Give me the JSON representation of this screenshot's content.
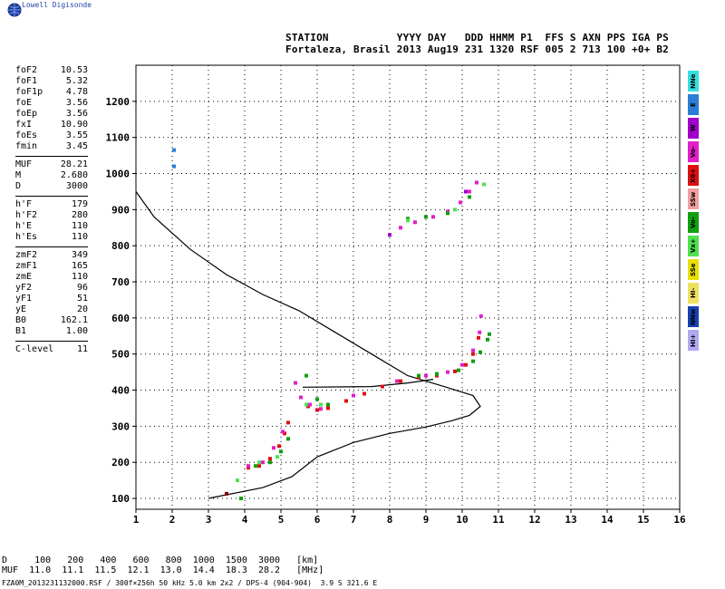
{
  "brand": "Lowell Digisonde",
  "header": {
    "line1": "STATION           YYYY DAY   DDD HHMM P1  FFS S AXN PPS IGA PS",
    "line2": "Fortaleza, Brasil 2013 Aug19 231 1320 RSF 005 2 713 100 +0+ B2"
  },
  "params": [
    {
      "label": "foF2",
      "value": "10.53"
    },
    {
      "label": "foF1",
      "value": "5.32"
    },
    {
      "label": "foF1p",
      "value": "4.78"
    },
    {
      "label": "foE",
      "value": "3.56"
    },
    {
      "label": "foEp",
      "value": "3.56"
    },
    {
      "label": "fxI",
      "value": "10.90"
    },
    {
      "label": "foEs",
      "value": "3.55"
    },
    {
      "label": "fmin",
      "value": "3.45"
    },
    {
      "label": "MUF",
      "value": "28.21",
      "sep": true
    },
    {
      "label": "M",
      "value": "2.680"
    },
    {
      "label": "D",
      "value": "3000"
    },
    {
      "label": "h'F",
      "value": "179",
      "sep": true
    },
    {
      "label": "h'F2",
      "value": "280"
    },
    {
      "label": "h'E",
      "value": "110"
    },
    {
      "label": "h'Es",
      "value": "110"
    },
    {
      "label": "zmF2",
      "value": "349",
      "sep": true
    },
    {
      "label": "zmF1",
      "value": "165"
    },
    {
      "label": "zmE",
      "value": "110"
    },
    {
      "label": "yF2",
      "value": "96"
    },
    {
      "label": "yF1",
      "value": "51"
    },
    {
      "label": "yE",
      "value": "20"
    },
    {
      "label": "B0",
      "value": "162.1"
    },
    {
      "label": "B1",
      "value": "1.00"
    },
    {
      "label": "C-level",
      "value": "11",
      "sep": true
    }
  ],
  "legend": [
    {
      "label": "NNe",
      "color": "#33e0e0"
    },
    {
      "label": "E",
      "color": "#2a7fd4"
    },
    {
      "label": "W",
      "color": "#a000c8"
    },
    {
      "label": "Vo-",
      "color": "#e020c8"
    },
    {
      "label": "X0+",
      "color": "#e01010"
    },
    {
      "label": "SSw",
      "color": "#f0a0a0"
    },
    {
      "label": "Vo-",
      "color": "#10a010"
    },
    {
      "label": "Vx+",
      "color": "#50e050"
    },
    {
      "label": "SSe",
      "color": "#e8e000"
    },
    {
      "label": "HI-",
      "color": "#f0e060"
    },
    {
      "label": "NNw",
      "color": "#1840b0"
    },
    {
      "label": "HI+",
      "color": "#b0a8f0"
    }
  ],
  "muf_table": {
    "d_row": "D     100   200   400   600   800  1000  1500  3000   [km]",
    "muf_row": "MUF  11.0  11.1  11.5  12.1  13.0  14.4  18.3  28.2   [MHz]"
  },
  "footer": "FZA0M_2013231132000.RSF / 300f×256h 50 kHz 5.0 km 2x2 / DPS-4 (904-904)  3.9 S 321.6 E",
  "chart_data": {
    "type": "scatter",
    "xlim": [
      1,
      16
    ],
    "ylim": [
      70,
      1300
    ],
    "x_ticks": [
      1,
      2,
      3,
      4,
      5,
      6,
      7,
      8,
      9,
      10,
      11,
      12,
      13,
      14,
      15,
      16
    ],
    "y_ticks": [
      100,
      200,
      300,
      400,
      500,
      600,
      700,
      800,
      900,
      1000,
      1100,
      1200
    ],
    "grid": true,
    "profile_line": {
      "color": "#000000",
      "points": [
        [
          3.0,
          100
        ],
        [
          4.5,
          130
        ],
        [
          5.3,
          160
        ],
        [
          6.0,
          215
        ],
        [
          7.0,
          255
        ],
        [
          8.0,
          280
        ],
        [
          9.0,
          298
        ],
        [
          9.7,
          315
        ],
        [
          10.2,
          330
        ],
        [
          10.5,
          355
        ],
        [
          10.3,
          385
        ],
        [
          9.5,
          410
        ],
        [
          8.5,
          440
        ],
        [
          7.5,
          500
        ],
        [
          6.5,
          560
        ],
        [
          5.5,
          620
        ],
        [
          4.5,
          665
        ],
        [
          3.5,
          720
        ],
        [
          2.5,
          790
        ],
        [
          1.5,
          880
        ],
        [
          1.0,
          950
        ]
      ]
    },
    "scaled_line": {
      "color": "#000000",
      "points": [
        [
          5.6,
          408
        ],
        [
          7.5,
          410
        ],
        [
          8.5,
          420
        ],
        [
          9.2,
          430
        ]
      ]
    },
    "traces": [
      {
        "name": "X0+",
        "color": "#e01010",
        "points": [
          [
            4.1,
            185
          ],
          [
            4.4,
            190
          ],
          [
            4.7,
            210
          ],
          [
            4.95,
            245
          ],
          [
            5.1,
            280
          ],
          [
            5.2,
            310
          ],
          [
            5.75,
            355
          ],
          [
            6.0,
            345
          ],
          [
            6.3,
            350
          ],
          [
            6.8,
            370
          ],
          [
            7.3,
            390
          ],
          [
            7.8,
            410
          ],
          [
            8.3,
            425
          ],
          [
            8.8,
            435
          ],
          [
            9.3,
            440
          ],
          [
            9.8,
            452
          ],
          [
            10.1,
            470
          ],
          [
            10.3,
            500
          ],
          [
            10.45,
            545
          ]
        ]
      },
      {
        "name": "Vo-",
        "color": "#e020c8",
        "points": [
          [
            4.1,
            190
          ],
          [
            4.5,
            200
          ],
          [
            4.8,
            240
          ],
          [
            5.05,
            285
          ],
          [
            5.4,
            420
          ],
          [
            5.55,
            380
          ],
          [
            5.8,
            360
          ],
          [
            6.1,
            348
          ],
          [
            7.0,
            385
          ],
          [
            8.2,
            425
          ],
          [
            9.0,
            440
          ],
          [
            9.6,
            450
          ],
          [
            10.0,
            470
          ],
          [
            10.3,
            510
          ],
          [
            10.48,
            560
          ],
          [
            10.52,
            605
          ],
          [
            8.3,
            850
          ],
          [
            8.7,
            865
          ],
          [
            9.2,
            880
          ],
          [
            9.6,
            895
          ],
          [
            9.95,
            920
          ],
          [
            10.2,
            950
          ],
          [
            10.4,
            975
          ]
        ]
      },
      {
        "name": "Vo-",
        "color": "#10a010",
        "points": [
          [
            3.9,
            100
          ],
          [
            4.3,
            190
          ],
          [
            4.7,
            200
          ],
          [
            5.0,
            230
          ],
          [
            5.2,
            265
          ],
          [
            5.7,
            440
          ],
          [
            6.0,
            375
          ],
          [
            6.3,
            360
          ],
          [
            8.8,
            440
          ],
          [
            9.3,
            445
          ],
          [
            9.9,
            455
          ],
          [
            10.3,
            480
          ],
          [
            10.5,
            505
          ],
          [
            10.7,
            540
          ],
          [
            10.75,
            555
          ],
          [
            8.5,
            875
          ],
          [
            9.0,
            880
          ],
          [
            9.6,
            890
          ],
          [
            10.2,
            935
          ]
        ]
      },
      {
        "name": "Vx+",
        "color": "#50e050",
        "points": [
          [
            3.8,
            150
          ],
          [
            4.4,
            200
          ],
          [
            4.9,
            215
          ],
          [
            5.7,
            360
          ],
          [
            6.1,
            360
          ],
          [
            8.5,
            870
          ],
          [
            9.8,
            900
          ],
          [
            10.6,
            970
          ]
        ]
      },
      {
        "name": "W",
        "color": "#a000c8",
        "points": [
          [
            8.0,
            830
          ],
          [
            10.1,
            950
          ]
        ]
      },
      {
        "name": "E",
        "color": "#2a7fd4",
        "points": [
          [
            2.05,
            1065
          ],
          [
            2.05,
            1020
          ]
        ]
      },
      {
        "name": "X0+",
        "color": "#800000",
        "points": [
          [
            3.5,
            113
          ]
        ]
      }
    ]
  }
}
